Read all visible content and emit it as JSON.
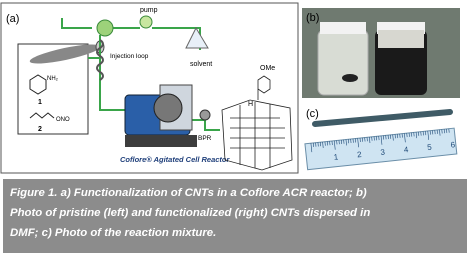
{
  "figure": {
    "panel_a": {
      "label": "(a)",
      "pump": "pump",
      "injection_loop": "Injection\nloop",
      "solvent": "solvent",
      "compound_1_group": "NH₂",
      "compound_1": "1",
      "compound_2_group": "ONO",
      "compound_2": "2",
      "reactor": "Coflore® Agitated Cell Reactor",
      "bpr": "BPR",
      "h": "H",
      "ome": "OMe"
    },
    "panel_b": {
      "label": "(b)"
    },
    "panel_c": {
      "label": "(c)",
      "ruler": [
        "1",
        "2",
        "3",
        "4",
        "5",
        "6"
      ]
    },
    "caption": [
      "Figure 1. a) Functionalization of CNTs in a Coflore ACR reactor; b)",
      "Photo of pristine (left) and functionalized (right) CNTs dispersed in",
      "DMF; c) Photo of the reaction mixture."
    ]
  }
}
